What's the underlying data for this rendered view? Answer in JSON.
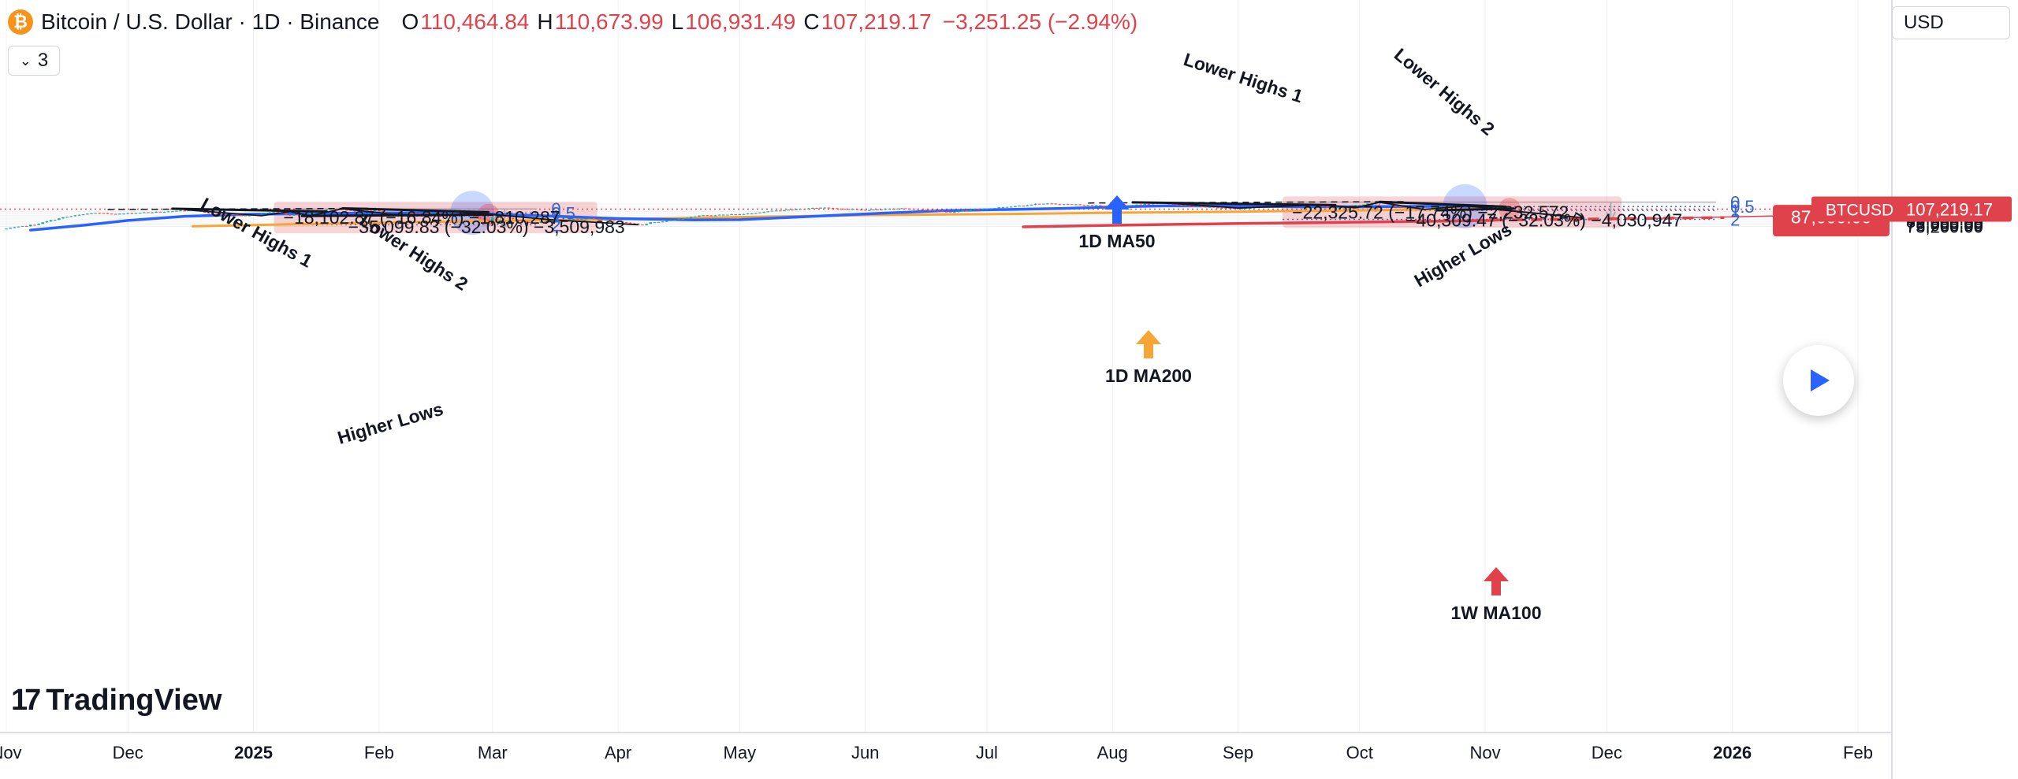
{
  "header": {
    "title": "Bitcoin / U.S. Dollar · 1D · Binance",
    "open_label": "O",
    "open": "110,464.84",
    "high_label": "H",
    "high": "110,673.99",
    "low_label": "L",
    "low": "106,931.49",
    "close_label": "C",
    "close": "107,219.17",
    "change": "−3,251.25 (−2.94%)"
  },
  "indicator_count": "3",
  "currency": "USD",
  "logo_text": "TradingView",
  "colors": {
    "up": "#26a69a",
    "down": "#ef5350",
    "ma50": "#2962ff",
    "ma200": "#f7a535",
    "ma100w": "#e0424b",
    "fib": "#3366cc",
    "price_tag": "#e0424b"
  },
  "chart_data": {
    "type": "candlestick",
    "symbol": "BTCUSD",
    "last_price": 107219.17,
    "last_price_label": "107,219.17",
    "y_axis": {
      "ticks": [
        120000,
        112000,
        102000,
        98000,
        94000,
        90000,
        86000,
        82000,
        79000,
        76000,
        73200
      ],
      "tick_labels": [
        "120,000.00",
        "112,000.00",
        "102,000.00",
        "98,000.00",
        "94,000.00",
        "90,000.00",
        "86,000.00",
        "82,000.00",
        "79,000.00",
        "76,000.00",
        "73,200.00"
      ]
    },
    "x_axis": {
      "labels": [
        "Nov",
        "Dec",
        "2025",
        "Feb",
        "Mar",
        "Apr",
        "May",
        "Jun",
        "Jul",
        "Aug",
        "Sep",
        "Oct",
        "Nov",
        "Dec",
        "2026",
        "Feb"
      ],
      "dates": [
        "2024-11-01",
        "2024-12-01",
        "2025-01-01",
        "2025-02-01",
        "2025-03-01",
        "2025-04-01",
        "2025-05-01",
        "2025-06-01",
        "2025-07-01",
        "2025-08-01",
        "2025-09-01",
        "2025-10-01",
        "2025-11-01",
        "2025-12-01",
        "2026-01-01",
        "2026-02-01"
      ]
    },
    "price_path": [
      [
        "2024-11-01",
        69500
      ],
      [
        "2024-11-08",
        76000
      ],
      [
        "2024-11-15",
        89000
      ],
      [
        "2024-11-22",
        98000
      ],
      [
        "2024-11-29",
        96500
      ],
      [
        "2024-12-05",
        99500
      ],
      [
        "2024-12-12",
        101500
      ],
      [
        "2024-12-17",
        106500
      ],
      [
        "2024-12-21",
        97000
      ],
      [
        "2024-12-26",
        95500
      ],
      [
        "2024-12-30",
        92500
      ],
      [
        "2025-01-06",
        101500
      ],
      [
        "2025-01-10",
        93500
      ],
      [
        "2025-01-14",
        96500
      ],
      [
        "2025-01-20",
        107500
      ],
      [
        "2025-01-24",
        104500
      ],
      [
        "2025-01-27",
        100500
      ],
      [
        "2025-01-31",
        104500
      ],
      [
        "2025-02-03",
        97000
      ],
      [
        "2025-02-12",
        97500
      ],
      [
        "2025-02-20",
        98500
      ],
      [
        "2025-02-24",
        92500
      ],
      [
        "2025-02-28",
        82500
      ],
      [
        "2025-03-02",
        94000
      ],
      [
        "2025-03-10",
        78500
      ],
      [
        "2025-03-17",
        83500
      ],
      [
        "2025-03-24",
        87500
      ],
      [
        "2025-03-31",
        82500
      ],
      [
        "2025-04-07",
        75500
      ],
      [
        "2025-04-09",
        79500
      ],
      [
        "2025-04-15",
        84500
      ],
      [
        "2025-04-22",
        93500
      ],
      [
        "2025-05-01",
        95500
      ],
      [
        "2025-05-10",
        103500
      ],
      [
        "2025-05-22",
        111000
      ],
      [
        "2025-06-01",
        104500
      ],
      [
        "2025-06-10",
        109500
      ],
      [
        "2025-06-22",
        100500
      ],
      [
        "2025-06-30",
        107500
      ],
      [
        "2025-07-10",
        116500
      ],
      [
        "2025-07-14",
        121000
      ],
      [
        "2025-07-25",
        118000
      ],
      [
        "2025-08-02",
        113000
      ],
      [
        "2025-08-13",
        123500
      ],
      [
        "2025-08-19",
        114500
      ],
      [
        "2025-08-25",
        111500
      ],
      [
        "2025-09-01",
        108500
      ],
      [
        "2025-09-12",
        115500
      ],
      [
        "2025-09-20",
        116000
      ],
      [
        "2025-09-25",
        109500
      ],
      [
        "2025-10-01",
        117500
      ],
      [
        "2025-10-06",
        125000
      ],
      [
        "2025-10-10",
        113500
      ],
      [
        "2025-10-17",
        106500
      ],
      [
        "2025-10-21",
        113000
      ],
      [
        "2025-10-27",
        115000
      ],
      [
        "2025-11-03",
        107219
      ]
    ],
    "ma50_1d": [
      [
        "2024-11-07",
        67500
      ],
      [
        "2024-11-20",
        75000
      ],
      [
        "2024-12-01",
        83500
      ],
      [
        "2024-12-15",
        91500
      ],
      [
        "2025-01-01",
        96000
      ],
      [
        "2025-01-15",
        97000
      ],
      [
        "2025-02-01",
        98500
      ],
      [
        "2025-02-20",
        98500
      ],
      [
        "2025-03-01",
        96000
      ],
      [
        "2025-03-15",
        92000
      ],
      [
        "2025-04-01",
        87000
      ],
      [
        "2025-04-20",
        84500
      ],
      [
        "2025-05-01",
        85000
      ],
      [
        "2025-05-15",
        90000
      ],
      [
        "2025-06-01",
        96500
      ],
      [
        "2025-06-20",
        103500
      ],
      [
        "2025-07-01",
        105500
      ],
      [
        "2025-07-20",
        109000
      ],
      [
        "2025-08-01",
        112500
      ],
      [
        "2025-08-15",
        115500
      ],
      [
        "2025-09-01",
        114500
      ],
      [
        "2025-09-15",
        113000
      ],
      [
        "2025-10-01",
        113000
      ],
      [
        "2025-10-15",
        114000
      ],
      [
        "2025-11-03",
        114000
      ]
    ],
    "ma200_1d": [
      [
        "2024-12-17",
        73400
      ],
      [
        "2025-01-01",
        75500
      ],
      [
        "2025-02-01",
        79500
      ],
      [
        "2025-03-01",
        82500
      ],
      [
        "2025-04-01",
        86000
      ],
      [
        "2025-05-01",
        90000
      ],
      [
        "2025-06-01",
        94000
      ],
      [
        "2025-07-01",
        96000
      ],
      [
        "2025-08-01",
        99000
      ],
      [
        "2025-09-01",
        101500
      ],
      [
        "2025-10-01",
        104500
      ],
      [
        "2025-11-03",
        108500
      ]
    ],
    "ma100_1w": [
      [
        "2025-07-10",
        72500
      ],
      [
        "2025-08-01",
        75000
      ],
      [
        "2025-09-01",
        78000
      ],
      [
        "2025-10-01",
        80500
      ],
      [
        "2025-11-03",
        83500
      ]
    ],
    "projection": {
      "path": [
        [
          "2025-11-03",
          107219
        ],
        [
          "2025-11-25",
          88500
        ]
      ],
      "target_label": "87,000.00",
      "target_price": 87000
    },
    "fib_levels": [
      {
        "set": 1,
        "labels": [
          "0",
          "0.5",
          "1",
          "2"
        ],
        "prices": [
          107800,
          98500,
          92000,
          75900
        ]
      },
      {
        "set": 2,
        "labels": [
          "0",
          "0.5",
          "1",
          "2"
        ],
        "prices": [
          125000,
          113500,
          104300,
          85500
        ]
      }
    ],
    "measurements": [
      "−18,102.87 (−16.84%) −1,810,287",
      "−35,099.83 (−32.03%) −3,509,983",
      "−22,325.72 (−17.74%) −2,232,572",
      "−40,309.47 (−32.03%) −4,030,947"
    ],
    "annotations": [
      "Lower Highs 1",
      "Lower Highs 2",
      "Higher Lows",
      "Lower Highs 1",
      "Lower Highs 2",
      "Higher Lows",
      "1D MA50",
      "1D MA200",
      "1W MA100"
    ]
  }
}
